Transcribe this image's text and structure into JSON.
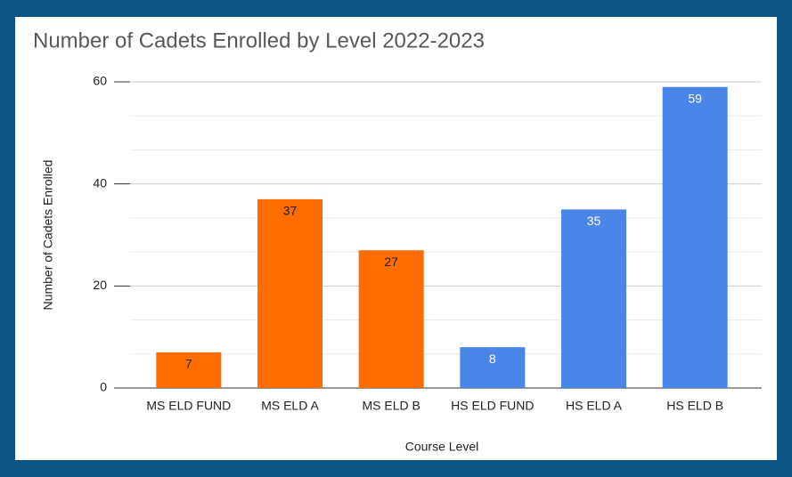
{
  "chart_data": {
    "type": "bar",
    "title": "Number of Cadets Enrolled by Level 2022-2023",
    "x_label": "Course Level",
    "y_label": "Number of Cadets Enrolled",
    "categories": [
      "MS ELD FUND",
      "MS ELD A",
      "MS ELD B",
      "HS ELD FUND",
      "HS ELD A",
      "HS ELD B"
    ],
    "values": [
      7,
      37,
      27,
      8,
      35,
      59
    ],
    "colors": [
      "#ff6d01",
      "#ff6d01",
      "#ff6d01",
      "#4a86e8",
      "#4a86e8",
      "#4a86e8"
    ],
    "label_colors": [
      "#222222",
      "#222222",
      "#222222",
      "#ffffff",
      "#ffffff",
      "#ffffff"
    ],
    "ylim": [
      0,
      60
    ],
    "yticks": [
      0,
      20,
      40,
      60
    ],
    "grid": true,
    "minor_grid_per_major": 3
  }
}
